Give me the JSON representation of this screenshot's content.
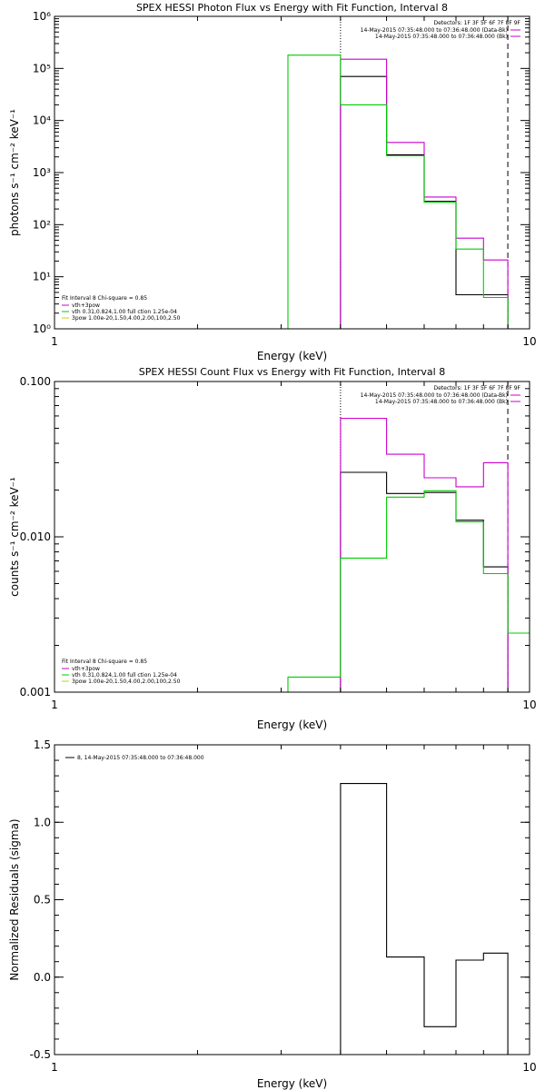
{
  "chart_data": [
    {
      "type": "line",
      "title": "SPEX HESSI Photon Flux vs Energy with Fit Function, Interval 8",
      "xlabel": "Energy (keV)",
      "ylabel": "photons s⁻¹ cm⁻² keV⁻¹",
      "xscale": "log",
      "yscale": "log",
      "xlim": [
        1,
        10
      ],
      "ylim": [
        1,
        1000000
      ],
      "grid": false,
      "xticks": [
        {
          "v": 1,
          "label": "1"
        },
        {
          "v": 10,
          "label": "10"
        }
      ],
      "yticks": [
        {
          "v": 1,
          "label": "10⁰"
        },
        {
          "v": 10,
          "label": "10¹"
        },
        {
          "v": 100,
          "label": "10²"
        },
        {
          "v": 1000,
          "label": "10³"
        },
        {
          "v": 10000,
          "label": "10⁴"
        },
        {
          "v": 100000,
          "label": "10⁵"
        },
        {
          "v": 1000000,
          "label": "10⁶"
        }
      ],
      "series": [
        {
          "name": "vth+3pow",
          "color": "#000000",
          "x": [
            4.0,
            4.0,
            5.0,
            5.0,
            6.0,
            6.0,
            7.0,
            7.0,
            8.0,
            8.0,
            9.0,
            9.0
          ],
          "y": [
            1,
            70000,
            70000,
            2200,
            2200,
            280,
            280,
            4.5,
            4.5,
            4.5,
            4.5,
            1
          ]
        },
        {
          "name": "vth+3pow",
          "color": "#cc00cc",
          "x": [
            4.0,
            4.0,
            5.0,
            5.0,
            6.0,
            6.0,
            7.0,
            7.0,
            8.0,
            8.0,
            9.0,
            9.0
          ],
          "y": [
            1,
            150000,
            150000,
            3800,
            3800,
            340,
            340,
            55,
            55,
            21,
            21,
            1
          ]
        },
        {
          "name": "vth 0.31,0.824,1.00 full ction 1.25e-04",
          "color": "#00cc00",
          "x": [
            3.1,
            3.1,
            4.0,
            4.0,
            5.0,
            5.0,
            6.0,
            6.0,
            7.0,
            7.0,
            8.0,
            8.0,
            9.0,
            9.0
          ],
          "y": [
            1,
            180000,
            180000,
            20000,
            20000,
            2100,
            2100,
            270,
            270,
            34,
            34,
            4,
            4,
            1
          ]
        }
      ],
      "vlines": [
        {
          "x": 4.0,
          "style": "dotted"
        },
        {
          "x": 9.0,
          "style": "dashed"
        }
      ],
      "legend_topright": {
        "header": "Detectors: 1F 3F 5F 6F 7F 8F 9F",
        "lines": [
          {
            "text": "14-May-2015 07:35:48.000 to 07:36:48.000 (Data-Bk)",
            "color": "#cc00cc"
          },
          {
            "text": "14-May-2015 07:35:48.000 to 07:36:48.000 (Bk)",
            "color": "#cc00cc"
          }
        ]
      },
      "legend_bottomleft": {
        "header": "Fit Interval 8    Chi-square = 0.85",
        "lines": [
          {
            "text": "vth+3pow",
            "color": "#cc00cc"
          },
          {
            "text": "vth 0.31,0.824,1.00  full ction 1.25e-04",
            "color": "#00cc00"
          },
          {
            "text": "3pow 1.00e-20,1.50,4.00,2.00,100,2.50",
            "color": "#cccc00"
          }
        ]
      }
    },
    {
      "type": "line",
      "title": "SPEX HESSI Count Flux vs Energy with Fit Function, Interval 8",
      "xlabel": "Energy (keV)",
      "ylabel": "counts s⁻¹ cm⁻² keV⁻¹",
      "xscale": "log",
      "yscale": "log",
      "xlim": [
        1,
        10
      ],
      "ylim": [
        0.001,
        0.1
      ],
      "grid": false,
      "xticks": [
        {
          "v": 1,
          "label": "1"
        },
        {
          "v": 10,
          "label": "10"
        }
      ],
      "yticks": [
        {
          "v": 0.001,
          "label": "0.001"
        },
        {
          "v": 0.01,
          "label": "0.010"
        },
        {
          "v": 0.1,
          "label": "0.100"
        }
      ],
      "series": [
        {
          "name": "vth+3pow",
          "color": "#000000",
          "x": [
            4.0,
            4.0,
            5.0,
            5.0,
            6.0,
            6.0,
            7.0,
            7.0,
            8.0,
            8.0,
            9.0,
            9.0
          ],
          "y": [
            0.001,
            0.026,
            0.026,
            0.019,
            0.019,
            0.0193,
            0.0193,
            0.0128,
            0.0128,
            0.0064,
            0.0064,
            0.001
          ]
        },
        {
          "name": "vth+3pow",
          "color": "#cc00cc",
          "x": [
            4.0,
            4.0,
            5.0,
            5.0,
            6.0,
            6.0,
            7.0,
            7.0,
            8.0,
            8.0,
            9.0,
            9.0
          ],
          "y": [
            0.001,
            0.058,
            0.058,
            0.034,
            0.034,
            0.024,
            0.024,
            0.021,
            0.021,
            0.03,
            0.03,
            0.001
          ]
        },
        {
          "name": "vth 0.31,0.824,1.00 full ction 1.25e-04",
          "color": "#00cc00",
          "x": [
            3.1,
            3.1,
            4.0,
            4.0,
            5.0,
            5.0,
            6.0,
            6.0,
            7.0,
            7.0,
            8.0,
            8.0,
            9.0,
            9.0,
            10.0
          ],
          "y": [
            0.001,
            0.00125,
            0.00125,
            0.0073,
            0.0073,
            0.018,
            0.018,
            0.0198,
            0.0198,
            0.0125,
            0.0125,
            0.0058,
            0.0058,
            0.0024,
            0.0024
          ]
        }
      ],
      "vlines": [
        {
          "x": 4.0,
          "style": "dotted"
        },
        {
          "x": 9.0,
          "style": "dashed"
        }
      ],
      "legend_topright": {
        "header": "Detectors: 1F 3F 5F 6F 7F 8F 9F",
        "lines": [
          {
            "text": "14-May-2015 07:35:48.000 to 07:36:48.000 (Data-Bk)",
            "color": "#cc00cc"
          },
          {
            "text": "14-May-2015 07:35:48.000 to 07:36:48.000 (Bk)",
            "color": "#cc00cc"
          }
        ]
      },
      "legend_bottomleft": {
        "header": "Fit Interval 8    Chi-square = 0.85",
        "lines": [
          {
            "text": "vth+3pow",
            "color": "#cc00cc"
          },
          {
            "text": "vth 0.31,0.824,1.00  full ction 1.25e-04",
            "color": "#00cc00"
          },
          {
            "text": "3pow 1.00e-20,1.50,4.00,2.00,100,2.50",
            "color": "#cccc00"
          }
        ]
      }
    },
    {
      "type": "line",
      "title": "",
      "xlabel": "Energy (keV)",
      "ylabel": "Normalized Residuals (sigma)",
      "xscale": "log",
      "yscale": "linear",
      "xlim": [
        1,
        10
      ],
      "ylim": [
        -0.5,
        1.5
      ],
      "grid": false,
      "xticks": [
        {
          "v": 1,
          "label": "1"
        },
        {
          "v": 10,
          "label": "10"
        }
      ],
      "yticks": [
        {
          "v": -0.5,
          "label": "-0.5"
        },
        {
          "v": 0.0,
          "label": "0.0"
        },
        {
          "v": 0.5,
          "label": "0.5"
        },
        {
          "v": 1.0,
          "label": "1.0"
        },
        {
          "v": 1.5,
          "label": "1.5"
        }
      ],
      "series": [
        {
          "name": "8, 14-May-2015 07:35:48.000 to 07:36:48.000",
          "color": "#000000",
          "x": [
            4.0,
            4.0,
            5.0,
            5.0,
            6.0,
            6.0,
            7.0,
            7.0,
            8.0,
            8.0,
            9.0,
            9.0
          ],
          "y": [
            -0.5,
            1.25,
            1.25,
            0.13,
            0.13,
            -0.32,
            -0.32,
            0.11,
            0.11,
            0.155,
            0.155,
            -0.5
          ]
        }
      ],
      "vlines": [],
      "legend_topleft": {
        "lines": [
          {
            "text": "8, 14-May-2015 07:35:48.000 to 07:36:48.000",
            "color": "#000000"
          }
        ]
      }
    }
  ]
}
